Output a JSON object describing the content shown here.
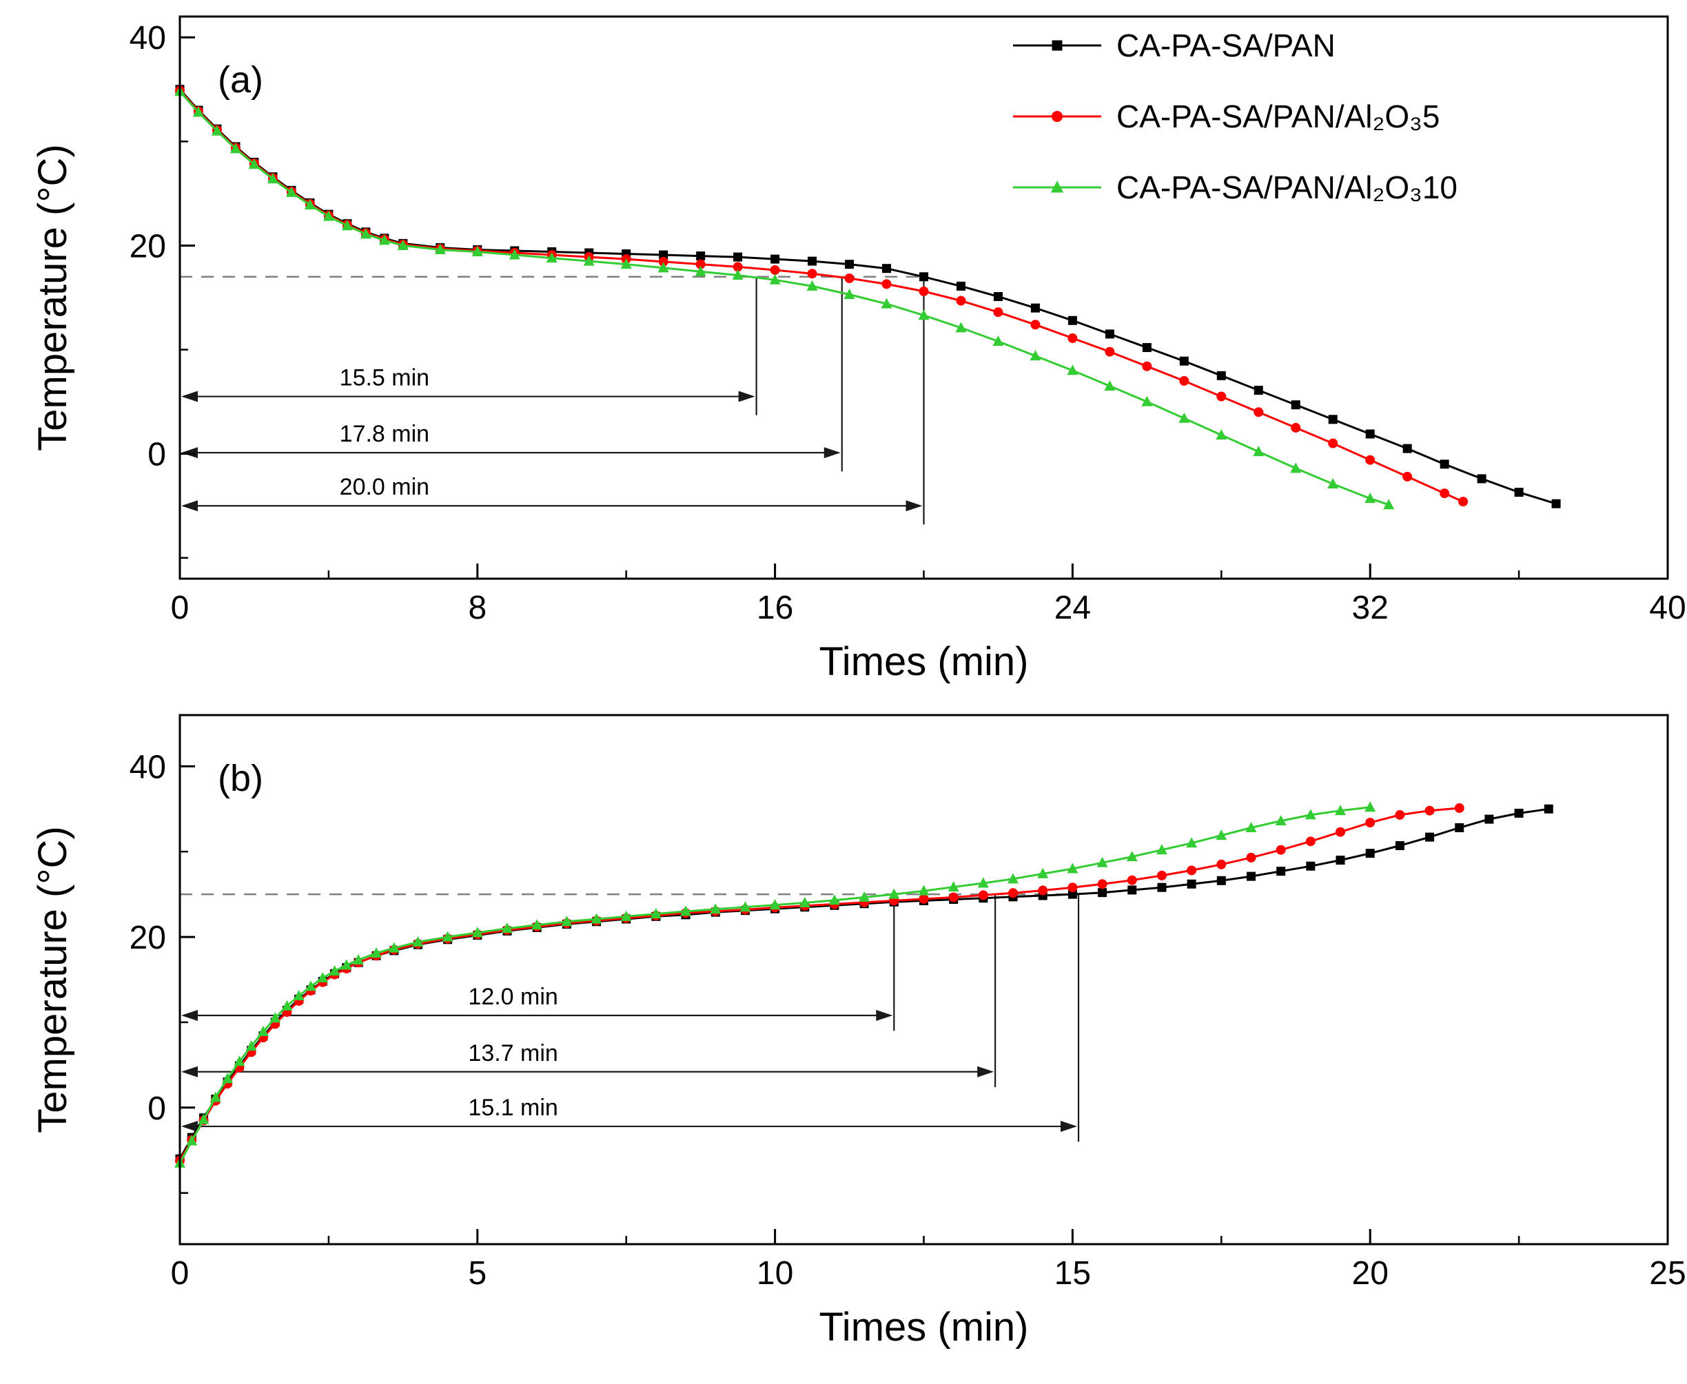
{
  "figure": {
    "background": "#ffffff",
    "panels": [
      {
        "label": "(a)"
      },
      {
        "label": "(b)"
      }
    ]
  },
  "chart_data": [
    {
      "type": "line",
      "panel": "a",
      "panel_label": "(a)",
      "title": "",
      "xlabel": "Times (min)",
      "ylabel": "Temperature (°C)",
      "xlim": [
        0,
        40
      ],
      "ylim": [
        -12,
        42
      ],
      "xticks": [
        0,
        8,
        16,
        24,
        32,
        40
      ],
      "x_minor_step": 4,
      "yticks": [
        0,
        20,
        40
      ],
      "y_minor_step": 10,
      "grid": false,
      "dashed_line": {
        "y": 17,
        "x_end": 20
      },
      "ann_text_x": 5.5,
      "annotations": [
        {
          "text": "15.5 min",
          "x": 15.5,
          "arrow_y": 5.5
        },
        {
          "text": "17.8 min",
          "x": 17.8,
          "arrow_y": 0.1
        },
        {
          "text": "20.0 min",
          "x": 20.0,
          "arrow_y": -5.0
        }
      ],
      "legend": {
        "show": true,
        "position": "top-right"
      },
      "series": [
        {
          "id": "ca-pa-sa-pan",
          "name": "CA-PA-SA/PAN",
          "color": "#000000",
          "marker": "square",
          "x": [
            0,
            0.5,
            1,
            1.5,
            2,
            2.5,
            3,
            3.5,
            4,
            4.5,
            5,
            5.5,
            6,
            7,
            8,
            9,
            10,
            11,
            12,
            13,
            14,
            15,
            16,
            17,
            18,
            19,
            20,
            21,
            22,
            23,
            24,
            25,
            26,
            27,
            28,
            29,
            30,
            31,
            32,
            33,
            34,
            35,
            36,
            37
          ],
          "y": [
            35,
            33,
            31.2,
            29.5,
            28,
            26.6,
            25.3,
            24.1,
            23,
            22.1,
            21.3,
            20.7,
            20.2,
            19.8,
            19.6,
            19.5,
            19.4,
            19.3,
            19.2,
            19.1,
            19,
            18.9,
            18.7,
            18.5,
            18.2,
            17.8,
            17,
            16.1,
            15.1,
            14,
            12.8,
            11.5,
            10.2,
            8.9,
            7.5,
            6.1,
            4.7,
            3.3,
            1.9,
            0.5,
            -1,
            -2.4,
            -3.7,
            -4.8
          ]
        },
        {
          "id": "ca-pa-sa-pan-al2o3-5",
          "name": "CA-PA-SA/PAN/Al₂O₃5",
          "color": "#ff0000",
          "marker": "circle",
          "x": [
            0,
            0.5,
            1,
            1.5,
            2,
            2.5,
            3,
            3.5,
            4,
            4.5,
            5,
            5.5,
            6,
            7,
            8,
            9,
            10,
            11,
            12,
            13,
            14,
            15,
            16,
            17,
            18,
            19,
            20,
            21,
            22,
            23,
            24,
            25,
            26,
            27,
            28,
            29,
            30,
            31,
            32,
            33,
            34,
            34.5
          ],
          "y": [
            34.9,
            32.9,
            31.1,
            29.4,
            27.9,
            26.5,
            25.2,
            24,
            22.9,
            22,
            21.2,
            20.6,
            20.1,
            19.7,
            19.5,
            19.3,
            19.1,
            18.9,
            18.7,
            18.45,
            18.2,
            17.95,
            17.65,
            17.3,
            16.85,
            16.3,
            15.6,
            14.7,
            13.6,
            12.4,
            11.1,
            9.8,
            8.4,
            7,
            5.5,
            4,
            2.5,
            1,
            -0.6,
            -2.2,
            -3.8,
            -4.6
          ]
        },
        {
          "id": "ca-pa-sa-pan-al2o3-10",
          "name": "CA-PA-SA/PAN/Al₂O₃10",
          "color": "#33cc33",
          "marker": "triangle",
          "x": [
            0,
            0.5,
            1,
            1.5,
            2,
            2.5,
            3,
            3.5,
            4,
            4.5,
            5,
            5.5,
            6,
            7,
            8,
            9,
            10,
            11,
            12,
            13,
            14,
            15,
            16,
            17,
            18,
            19,
            20,
            21,
            22,
            23,
            24,
            25,
            26,
            27,
            28,
            29,
            30,
            31,
            32,
            32.5
          ],
          "y": [
            34.8,
            32.8,
            31,
            29.3,
            27.8,
            26.4,
            25.1,
            23.9,
            22.8,
            21.9,
            21.1,
            20.5,
            20,
            19.6,
            19.4,
            19.1,
            18.8,
            18.5,
            18.2,
            17.85,
            17.5,
            17.15,
            16.7,
            16.1,
            15.3,
            14.4,
            13.3,
            12.1,
            10.8,
            9.4,
            8,
            6.5,
            5,
            3.4,
            1.8,
            0.2,
            -1.4,
            -2.9,
            -4.3,
            -4.9
          ]
        }
      ]
    },
    {
      "type": "line",
      "panel": "b",
      "panel_label": "(b)",
      "title": "",
      "xlabel": "Times (min)",
      "ylabel": "Temperature (°C)",
      "xlim": [
        0,
        25
      ],
      "ylim": [
        -16,
        46
      ],
      "xticks": [
        0,
        5,
        10,
        15,
        20,
        25
      ],
      "x_minor_step": 2.5,
      "yticks": [
        0,
        20,
        40
      ],
      "y_minor_step": 10,
      "grid": false,
      "dashed_line": {
        "y": 25,
        "x_end": 15.1
      },
      "ann_text_x": 5.6,
      "annotations": [
        {
          "text": "12.0 min",
          "x": 12.0,
          "arrow_y": 10.8
        },
        {
          "text": "13.7 min",
          "x": 13.7,
          "arrow_y": 4.2
        },
        {
          "text": "15.1 min",
          "x": 15.1,
          "arrow_y": -2.2
        }
      ],
      "legend": {
        "show": false,
        "position": "none"
      },
      "series": [
        {
          "id": "ca-pa-sa-pan",
          "name": "CA-PA-SA/PAN",
          "color": "#000000",
          "marker": "square",
          "x": [
            0,
            0.2,
            0.4,
            0.6,
            0.8,
            1,
            1.2,
            1.4,
            1.6,
            1.8,
            2,
            2.2,
            2.4,
            2.6,
            2.8,
            3,
            3.3,
            3.6,
            4,
            4.5,
            5,
            5.5,
            6,
            6.5,
            7,
            7.5,
            8,
            8.5,
            9,
            9.5,
            10,
            10.5,
            11,
            11.5,
            12,
            12.5,
            13,
            13.5,
            14,
            14.5,
            15,
            15.5,
            16,
            16.5,
            17,
            17.5,
            18,
            18.5,
            19,
            19.5,
            20,
            20.5,
            21,
            21.5,
            22,
            22.5,
            23
          ],
          "y": [
            -6,
            -3.5,
            -1.2,
            1,
            3,
            4.9,
            6.7,
            8.4,
            10,
            11.4,
            12.7,
            13.8,
            14.8,
            15.7,
            16.4,
            17,
            17.8,
            18.4,
            19.1,
            19.7,
            20.2,
            20.7,
            21.1,
            21.5,
            21.8,
            22.1,
            22.4,
            22.6,
            22.9,
            23.1,
            23.3,
            23.5,
            23.7,
            23.9,
            24.1,
            24.25,
            24.4,
            24.55,
            24.7,
            24.85,
            25,
            25.2,
            25.5,
            25.8,
            26.2,
            26.6,
            27.1,
            27.7,
            28.3,
            29,
            29.8,
            30.7,
            31.7,
            32.8,
            33.8,
            34.5,
            35
          ]
        },
        {
          "id": "ca-pa-sa-pan-al2o3-5",
          "name": "CA-PA-SA/PAN/Al₂O₃5",
          "color": "#ff0000",
          "marker": "circle",
          "x": [
            0,
            0.2,
            0.4,
            0.6,
            0.8,
            1,
            1.2,
            1.4,
            1.6,
            1.8,
            2,
            2.2,
            2.4,
            2.6,
            2.8,
            3,
            3.3,
            3.6,
            4,
            4.5,
            5,
            5.5,
            6,
            6.5,
            7,
            7.5,
            8,
            8.5,
            9,
            9.5,
            10,
            10.5,
            11,
            11.5,
            12,
            12.5,
            13,
            13.5,
            14,
            14.5,
            15,
            15.5,
            16,
            16.5,
            17,
            17.5,
            18,
            18.5,
            19,
            19.5,
            20,
            20.5,
            21,
            21.5
          ],
          "y": [
            -6.2,
            -3.8,
            -1.5,
            0.8,
            2.8,
            4.7,
            6.5,
            8.2,
            9.8,
            11.2,
            12.5,
            13.7,
            14.7,
            15.6,
            16.3,
            17,
            17.8,
            18.5,
            19.2,
            19.8,
            20.3,
            20.8,
            21.2,
            21.6,
            21.9,
            22.2,
            22.5,
            22.8,
            23,
            23.2,
            23.45,
            23.65,
            23.85,
            24.05,
            24.25,
            24.45,
            24.65,
            24.9,
            25.15,
            25.45,
            25.8,
            26.2,
            26.65,
            27.2,
            27.8,
            28.5,
            29.3,
            30.2,
            31.2,
            32.3,
            33.4,
            34.3,
            34.8,
            35.1
          ]
        },
        {
          "id": "ca-pa-sa-pan-al2o3-10",
          "name": "CA-PA-SA/PAN/Al₂O₃10",
          "color": "#33cc33",
          "marker": "triangle",
          "x": [
            0,
            0.2,
            0.4,
            0.6,
            0.8,
            1,
            1.2,
            1.4,
            1.6,
            1.8,
            2,
            2.2,
            2.4,
            2.6,
            2.8,
            3,
            3.3,
            3.6,
            4,
            4.5,
            5,
            5.5,
            6,
            6.5,
            7,
            7.5,
            8,
            8.5,
            9,
            9.5,
            10,
            10.5,
            11,
            11.5,
            12,
            12.5,
            13,
            13.5,
            14,
            14.5,
            15,
            15.5,
            16,
            16.5,
            17,
            17.5,
            18,
            18.5,
            19,
            19.5,
            20
          ],
          "y": [
            -6.5,
            -3.9,
            -1.4,
            1.2,
            3.4,
            5.4,
            7.2,
            8.9,
            10.5,
            11.9,
            13.1,
            14.2,
            15.2,
            16,
            16.7,
            17.3,
            18.1,
            18.7,
            19.4,
            20,
            20.5,
            21,
            21.4,
            21.8,
            22.1,
            22.4,
            22.7,
            23,
            23.25,
            23.5,
            23.75,
            24,
            24.3,
            24.65,
            25,
            25.4,
            25.85,
            26.3,
            26.8,
            27.4,
            28,
            28.7,
            29.4,
            30.2,
            31,
            31.9,
            32.8,
            33.6,
            34.3,
            34.8,
            35.2
          ]
        }
      ]
    }
  ]
}
